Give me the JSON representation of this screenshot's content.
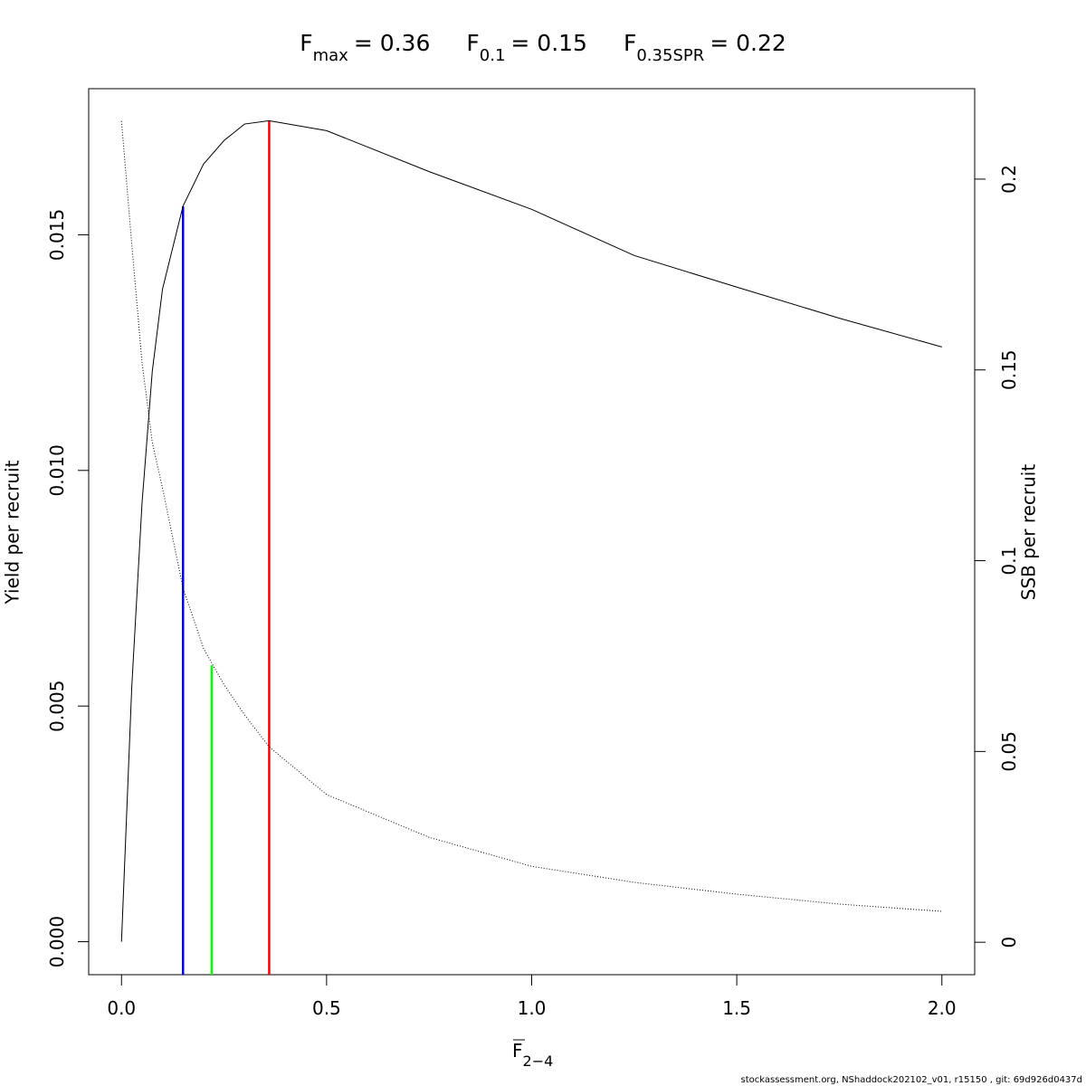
{
  "chart_data": {
    "type": "line",
    "title": [
      {
        "symbol": "F",
        "subscript": "max",
        "text": "= 0.36"
      },
      {
        "symbol": "F",
        "subscript": "0.1",
        "text": "= 0.15"
      },
      {
        "symbol": "F",
        "subscript": "0.35SPR",
        "text": "= 0.22"
      }
    ],
    "xlabel": {
      "symbol": "F",
      "subscript": "2−4"
    },
    "ylabel": "Yield per recruit",
    "y2label": "SSB per recruit",
    "footer": "stockassessment.org, NShaddock202102_v01, r15150 , git: 69d926d0437d",
    "x": [
      0,
      0.025,
      0.05,
      0.075,
      0.1,
      0.15,
      0.2,
      0.25,
      0.3,
      0.36,
      0.5,
      0.75,
      1,
      1.25,
      1.5,
      1.75,
      2
    ],
    "series": [
      {
        "color": "#000000",
        "style": "solid",
        "axis": "y",
        "values": [
          0,
          0.0054,
          0.0093,
          0.0121,
          0.01385,
          0.01561,
          0.0165,
          0.017,
          0.01735,
          0.01742,
          0.01721,
          0.01634,
          0.01554,
          0.01456,
          0.01389,
          0.01323,
          0.01262
        ]
      },
      {
        "color": "#000000",
        "style": "dotted",
        "axis": "y2",
        "values": [
          0.2152,
          0.183,
          0.152,
          0.131,
          0.119,
          0.0928,
          0.077,
          0.0675,
          0.0596,
          0.0512,
          0.0387,
          0.0275,
          0.0199,
          0.0157,
          0.0126,
          0.01,
          0.0081
        ]
      }
    ],
    "reference_lines": [
      {
        "x": 0.36,
        "top": 0.01742,
        "axis": "y",
        "color": "#ff0000"
      },
      {
        "x": 0.15,
        "top": 0.0156,
        "axis": "y",
        "color": "#0000ff"
      },
      {
        "x": 0.22,
        "top": 0.0726,
        "axis": "y2",
        "color": "#00ff00"
      }
    ],
    "xlim": [
      -0.08,
      2.08
    ],
    "ylim": [
      -0.0007,
      0.0181
    ],
    "y2lim": [
      -0.0085,
      0.2237
    ],
    "xticks": [
      {
        "value": 0,
        "label": "0.0"
      },
      {
        "value": 0.5,
        "label": "0.5"
      },
      {
        "value": 1,
        "label": "1.0"
      },
      {
        "value": 1.5,
        "label": "1.5"
      },
      {
        "value": 2,
        "label": "2.0"
      }
    ],
    "yticks": [
      {
        "value": 0,
        "label": "0.000"
      },
      {
        "value": 0.005,
        "label": "0.005"
      },
      {
        "value": 0.01,
        "label": "0.010"
      },
      {
        "value": 0.015,
        "label": "0.015"
      }
    ],
    "y2ticks": [
      0,
      0.05,
      0.1,
      0.15,
      0.2
    ],
    "grid": false
  }
}
